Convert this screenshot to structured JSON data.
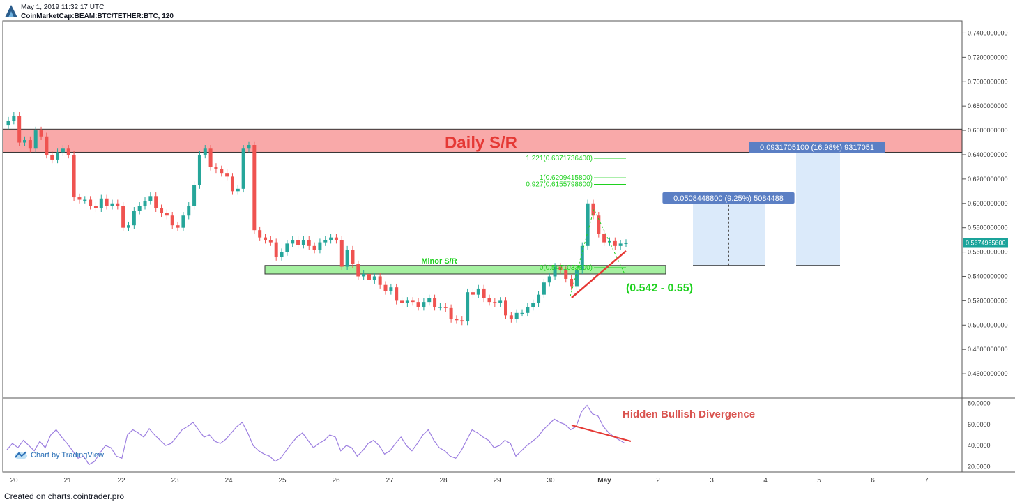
{
  "header": {
    "timestamp": "May 1, 2019 11:32:17 UTC",
    "symbol": "CoinMarketCap:BEAM:BTC/TETHER:BTC, 120"
  },
  "footer": {
    "created_on": "Created on charts.cointrader.pro"
  },
  "branding": {
    "chart_by": "Chart by TradingView"
  },
  "colors": {
    "up": "#26a69a",
    "down": "#ef5350",
    "daily_zone": "#f9a9a9",
    "minor_zone": "#a5f0a0",
    "measure_box": "#dbeafa",
    "rsi": "#9c7ee0",
    "annotation_red": "#e53935",
    "fib_green": "#1fd11f",
    "price_tag": "#1aa39a",
    "label_blue": "#5b7fc4"
  },
  "chart_data": {
    "type": "candlestick",
    "price_axis": {
      "range": [
        0.44,
        0.75
      ],
      "ticks": [
        "0.7400000000",
        "0.7200000000",
        "0.7000000000",
        "0.6800000000",
        "0.6600000000",
        "0.6400000000",
        "0.6200000000",
        "0.6000000000",
        "0.5800000000",
        "0.5600000000",
        "0.5400000000",
        "0.5200000000",
        "0.5000000000",
        "0.4800000000",
        "0.4600000000"
      ],
      "tick_values": [
        0.74,
        0.72,
        0.7,
        0.68,
        0.66,
        0.64,
        0.62,
        0.6,
        0.58,
        0.56,
        0.54,
        0.52,
        0.5,
        0.48,
        0.46
      ]
    },
    "current_price": {
      "value": 0.56749856,
      "label": "0.5674985600"
    },
    "time_axis": {
      "labels": [
        "20",
        "21",
        "22",
        "23",
        "24",
        "25",
        "26",
        "27",
        "28",
        "29",
        "30",
        "May",
        "2",
        "3",
        "4",
        "5",
        "6",
        "7"
      ],
      "day_index": [
        0,
        1,
        2,
        3,
        4,
        5,
        6,
        7,
        8,
        9,
        10,
        11,
        12,
        13,
        14,
        15,
        16,
        17
      ]
    },
    "closes": [
      0.668,
      0.672,
      0.65,
      0.652,
      0.645,
      0.66,
      0.655,
      0.64,
      0.636,
      0.642,
      0.645,
      0.64,
      0.605,
      0.603,
      0.603,
      0.598,
      0.596,
      0.604,
      0.598,
      0.6,
      0.598,
      0.58,
      0.582,
      0.594,
      0.598,
      0.602,
      0.606,
      0.596,
      0.592,
      0.59,
      0.582,
      0.58,
      0.59,
      0.598,
      0.615,
      0.64,
      0.645,
      0.63,
      0.628,
      0.625,
      0.622,
      0.61,
      0.612,
      0.645,
      0.648,
      0.578,
      0.572,
      0.57,
      0.568,
      0.556,
      0.56,
      0.567,
      0.57,
      0.566,
      0.57,
      0.565,
      0.562,
      0.568,
      0.57,
      0.572,
      0.57,
      0.548,
      0.562,
      0.55,
      0.54,
      0.542,
      0.537,
      0.54,
      0.533,
      0.528,
      0.531,
      0.52,
      0.518,
      0.52,
      0.519,
      0.515,
      0.519,
      0.522,
      0.515,
      0.515,
      0.514,
      0.505,
      0.504,
      0.503,
      0.527,
      0.525,
      0.53,
      0.522,
      0.519,
      0.518,
      0.52,
      0.508,
      0.505,
      0.51,
      0.51,
      0.515,
      0.518,
      0.525,
      0.535,
      0.54,
      0.548,
      0.545,
      0.538,
      0.532,
      0.545,
      0.565,
      0.6,
      0.59,
      0.575,
      0.568,
      0.569,
      0.565,
      0.567,
      0.5675
    ],
    "annotations": {
      "daily_sr": {
        "label": "Daily S/R",
        "range": [
          0.642,
          0.661
        ]
      },
      "minor_sr": {
        "label": "Minor S/R",
        "range": [
          0.542,
          0.549
        ]
      },
      "target_zone": {
        "label": "(0.542 - 0.55)"
      },
      "fib_levels": [
        {
          "label": "1.221(0.6371736400)",
          "value": 0.63717364
        },
        {
          "label": "1(0.6209415800)",
          "value": 0.62094158
        },
        {
          "label": "0.927(0.6155798600)",
          "value": 0.61557986
        },
        {
          "label": "0(0.5471033800)",
          "value": 0.54710338
        }
      ],
      "measure_1": {
        "label": "0.0508448800 (9.25%) 5084488",
        "from": 0.549,
        "to": 0.601
      },
      "measure_2": {
        "label": "0.0931705100 (16.98%) 9317051",
        "from": 0.549,
        "to": 0.642
      }
    },
    "rsi": {
      "range": [
        15,
        85
      ],
      "ticks": [
        "80.0000",
        "60.0000",
        "40.0000",
        "20.0000"
      ],
      "tick_values": [
        80,
        60,
        40,
        20
      ],
      "values": [
        36,
        42,
        38,
        45,
        40,
        35,
        44,
        38,
        50,
        55,
        48,
        42,
        35,
        28,
        30,
        22,
        25,
        33,
        40,
        38,
        30,
        28,
        50,
        55,
        52,
        48,
        56,
        50,
        45,
        40,
        42,
        48,
        55,
        58,
        62,
        55,
        48,
        50,
        44,
        42,
        46,
        52,
        58,
        62,
        52,
        40,
        35,
        32,
        30,
        25,
        28,
        35,
        42,
        48,
        52,
        45,
        38,
        42,
        45,
        50,
        48,
        35,
        40,
        38,
        30,
        35,
        42,
        45,
        40,
        32,
        35,
        42,
        48,
        40,
        35,
        42,
        50,
        55,
        45,
        38,
        35,
        30,
        28,
        35,
        45,
        55,
        52,
        48,
        45,
        38,
        40,
        45,
        42,
        30,
        35,
        40,
        44,
        48,
        55,
        60,
        65,
        62,
        60,
        55,
        58,
        72,
        78,
        70,
        68,
        58,
        52,
        48,
        45,
        42
      ],
      "annotation": {
        "label": "Hidden Bullish Divergence"
      }
    }
  }
}
